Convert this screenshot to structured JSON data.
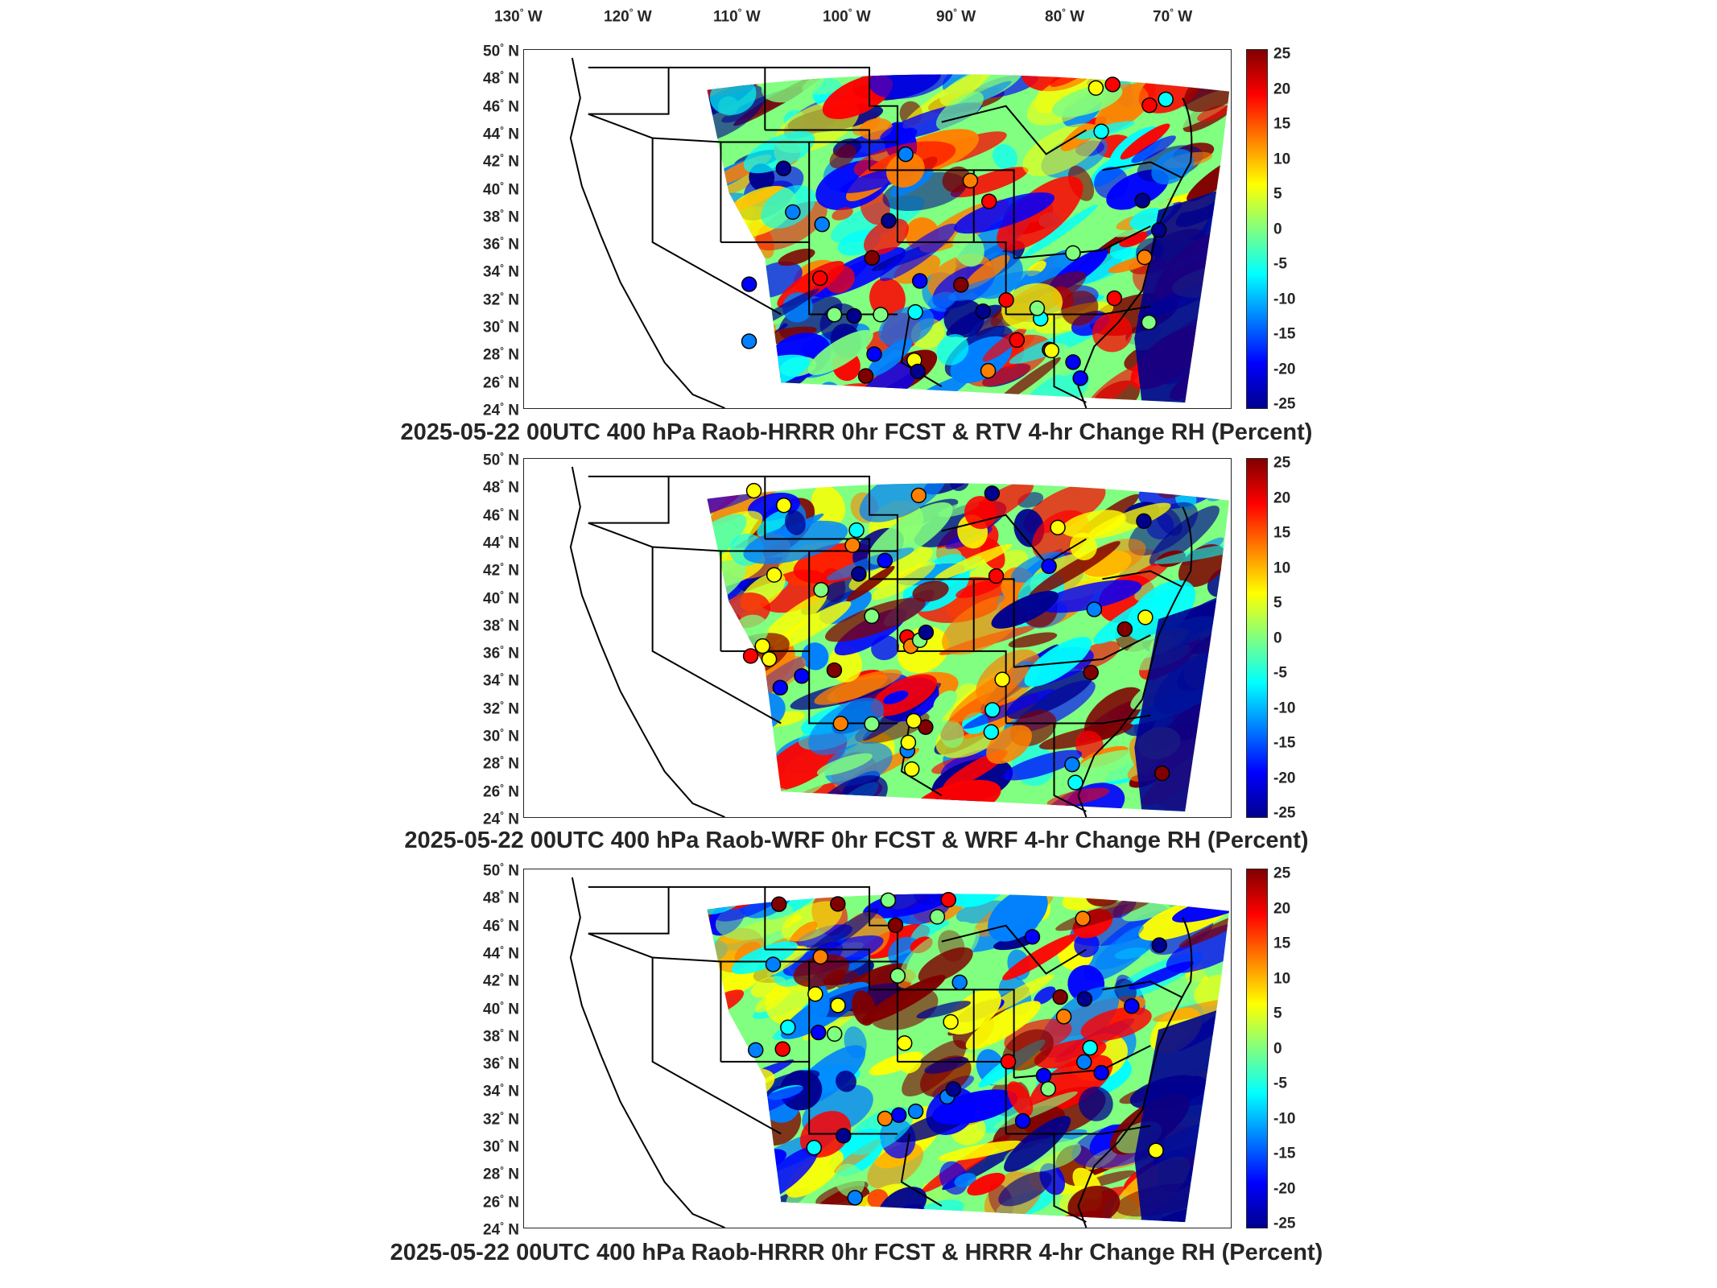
{
  "longitude_labels": [
    "130",
    "120",
    "110",
    "100",
    "90",
    "80",
    "70"
  ],
  "longitude_suffix": "W",
  "latitude_labels": [
    "50",
    "48",
    "46",
    "44",
    "42",
    "40",
    "38",
    "36",
    "34",
    "32",
    "30",
    "28",
    "26",
    "24"
  ],
  "latitude_suffix": "N",
  "colorbar": {
    "ticks": [
      "25",
      "20",
      "15",
      "10",
      "5",
      "0",
      "-5",
      "-10",
      "-15",
      "-20",
      "-25"
    ],
    "range": [
      -25,
      25
    ],
    "colors": [
      "#00008f",
      "#0000ff",
      "#0080ff",
      "#00ffff",
      "#80ff80",
      "#ffff00",
      "#ff8000",
      "#ff0000",
      "#800000"
    ]
  },
  "panels": [
    {
      "title": "2025-05-22 00UTC 400 hPa Raob-HRRR 0hr FCST & RTV 4-hr Change RH (Percent)"
    },
    {
      "title": "2025-05-22 00UTC 400 hPa Raob-WRF 0hr FCST & WRF 4-hr Change RH (Percent)"
    },
    {
      "title": "2025-05-22 00UTC 400 hPa Raob-HRRR 0hr FCST & HRRR 4-hr Change RH (Percent)"
    }
  ],
  "styles": {
    "outline_color": "#000000",
    "text_color": "#262626"
  }
}
